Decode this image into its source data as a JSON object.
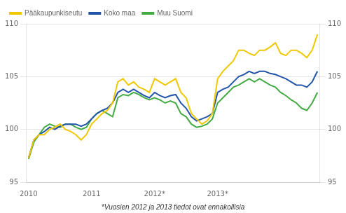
{
  "chart_data": {
    "type": "line",
    "categories": [
      "2010",
      null,
      null,
      null,
      null,
      null,
      null,
      null,
      null,
      null,
      null,
      null,
      "2011",
      null,
      null,
      null,
      null,
      null,
      null,
      null,
      null,
      null,
      null,
      null,
      "2012*",
      null,
      null,
      null,
      null,
      null,
      null,
      null,
      null,
      null,
      null,
      null,
      "2013*",
      null,
      null,
      null,
      null,
      null,
      null,
      null,
      null,
      null,
      null,
      null,
      null,
      null,
      null,
      null,
      null,
      null,
      null,
      null
    ],
    "series": [
      {
        "name": "Pääkaupunkiseutu",
        "color": "#f0c800",
        "values": [
          97.3,
          99.0,
          99.5,
          99.5,
          100.0,
          100.2,
          100.5,
          100.0,
          99.8,
          99.5,
          99.0,
          99.5,
          100.5,
          101.0,
          101.5,
          101.8,
          102.5,
          104.5,
          104.8,
          104.2,
          104.5,
          104.0,
          103.8,
          103.5,
          104.8,
          104.5,
          104.2,
          104.5,
          104.8,
          103.5,
          103.0,
          101.5,
          101.0,
          100.5,
          100.8,
          101.5,
          104.8,
          105.5,
          106.0,
          106.5,
          107.5,
          107.5,
          107.2,
          107.0,
          107.5,
          107.5,
          107.8,
          108.2,
          107.2,
          107.0,
          107.5,
          107.5,
          107.2,
          106.8,
          107.5,
          109.0
        ]
      },
      {
        "name": "Koko maa",
        "color": "#2255aa",
        "values": [
          97.3,
          99.0,
          99.5,
          99.8,
          100.2,
          100.0,
          100.3,
          100.5,
          100.5,
          100.5,
          100.3,
          100.5,
          101.0,
          101.5,
          101.8,
          102.0,
          102.5,
          103.5,
          103.8,
          103.5,
          103.8,
          103.5,
          103.2,
          103.0,
          103.5,
          103.2,
          103.0,
          103.2,
          103.3,
          102.5,
          102.0,
          101.2,
          100.8,
          101.0,
          101.2,
          101.5,
          103.5,
          103.8,
          104.0,
          104.5,
          105.0,
          105.2,
          105.5,
          105.3,
          105.5,
          105.5,
          105.3,
          105.2,
          105.0,
          104.8,
          104.5,
          104.2,
          104.2,
          104.0,
          104.5,
          105.5
        ]
      },
      {
        "name": "Muu Suomi",
        "color": "#44aa44",
        "values": [
          97.2,
          98.8,
          99.5,
          100.2,
          100.5,
          100.3,
          100.2,
          100.5,
          100.5,
          100.2,
          100.0,
          100.2,
          101.0,
          101.5,
          101.8,
          101.5,
          101.2,
          103.0,
          103.3,
          103.2,
          103.5,
          103.3,
          103.0,
          102.8,
          103.0,
          102.8,
          102.5,
          102.7,
          102.5,
          101.5,
          101.2,
          100.5,
          100.2,
          100.3,
          100.5,
          101.0,
          102.5,
          103.0,
          103.5,
          104.0,
          104.2,
          104.5,
          104.8,
          104.5,
          104.8,
          104.5,
          104.2,
          104.0,
          103.5,
          103.2,
          102.8,
          102.5,
          102.0,
          101.8,
          102.5,
          103.5
        ]
      }
    ],
    "ylim": [
      95,
      110
    ],
    "yticks": [
      95,
      100,
      105,
      110
    ],
    "y2lim": [
      95,
      110
    ],
    "y2ticks": [
      95,
      100,
      105,
      110
    ],
    "grid": true,
    "legend": "upper left",
    "annotations": [
      "*Vuosien 2012 ja 2013 tiedot ovat ennakollisia"
    ]
  }
}
